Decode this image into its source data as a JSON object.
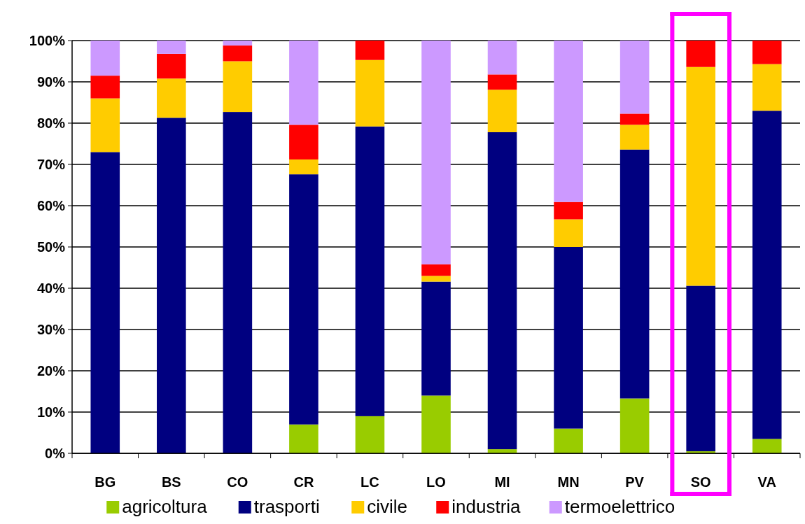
{
  "chart_data": {
    "type": "bar",
    "stacked": true,
    "categories": [
      "BG",
      "BS",
      "CO",
      "CR",
      "LC",
      "LO",
      "MI",
      "MN",
      "PV",
      "SO",
      "VA"
    ],
    "series": [
      {
        "name": "agricoltura",
        "color": "#99cc00",
        "values": [
          0,
          0,
          0,
          7,
          9,
          14,
          1,
          6,
          13.3,
          0.5,
          3.5
        ]
      },
      {
        "name": "trasporti",
        "color": "#000080",
        "values": [
          73,
          81.3,
          82.7,
          60.6,
          70.2,
          27.6,
          76.8,
          44,
          60.3,
          40.1,
          79.5
        ]
      },
      {
        "name": "civile",
        "color": "#ffcc00",
        "values": [
          13,
          9.5,
          12.3,
          3.6,
          16.1,
          1.4,
          10.3,
          6.7,
          6,
          53,
          11.3
        ]
      },
      {
        "name": "industria",
        "color": "#ff0000",
        "values": [
          5.5,
          6,
          3.8,
          8.4,
          4.7,
          2.8,
          3.7,
          4.2,
          2.7,
          6.4,
          5.7
        ]
      },
      {
        "name": "termoelettrico",
        "color": "#cc99ff",
        "values": [
          8.5,
          3.2,
          1.2,
          20.4,
          0,
          54.2,
          8.2,
          39.1,
          17.7,
          0,
          0
        ]
      }
    ],
    "ylim": [
      0,
      100
    ],
    "yticks": [
      {
        "value": 0,
        "label": "0%"
      },
      {
        "value": 10,
        "label": "10%"
      },
      {
        "value": 20,
        "label": "20%"
      },
      {
        "value": 30,
        "label": "30%"
      },
      {
        "value": 40,
        "label": "40%"
      },
      {
        "value": 50,
        "label": "50%"
      },
      {
        "value": 60,
        "label": "60%"
      },
      {
        "value": 70,
        "label": "70%"
      },
      {
        "value": 80,
        "label": "80%"
      },
      {
        "value": 90,
        "label": "90%"
      },
      {
        "value": 100,
        "label": "100%"
      }
    ],
    "grid": "y",
    "legend": "bottom"
  }
}
